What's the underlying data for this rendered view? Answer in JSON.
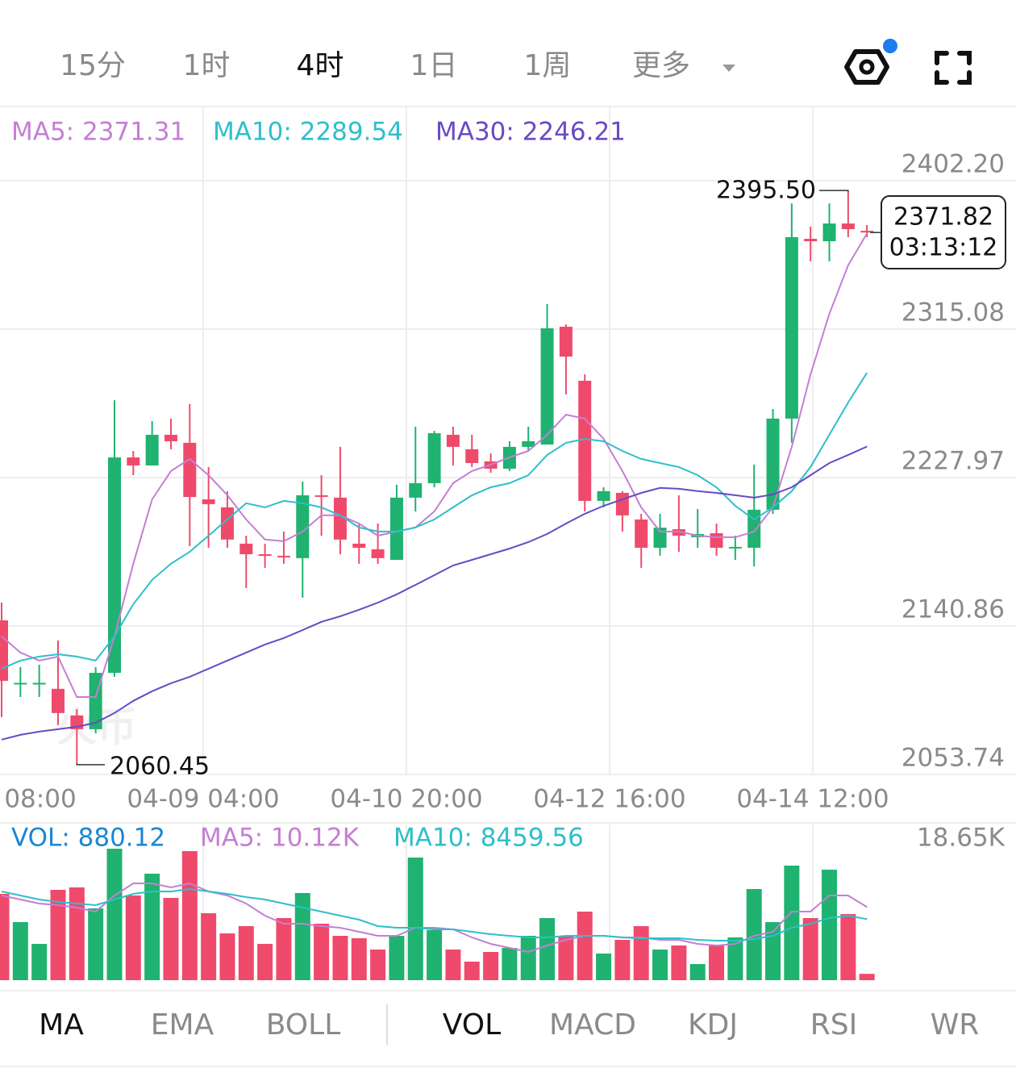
{
  "tabs": [
    {
      "label": "15分",
      "active": false
    },
    {
      "label": "1时",
      "active": false
    },
    {
      "label": "4时",
      "active": true
    },
    {
      "label": "1日",
      "active": false
    },
    {
      "label": "1周",
      "active": false
    },
    {
      "label": "更多",
      "active": false
    }
  ],
  "indicator_tabs": [
    {
      "label": "MA",
      "active": true
    },
    {
      "label": "EMA",
      "active": false
    },
    {
      "label": "BOLL",
      "active": false
    },
    {
      "label": "VOL",
      "active": true
    },
    {
      "label": "MACD",
      "active": false
    },
    {
      "label": "KDJ",
      "active": false
    },
    {
      "label": "RSI",
      "active": false
    },
    {
      "label": "WR",
      "active": false
    }
  ],
  "chart_data": [
    {
      "type": "candlestick",
      "watermark": "火币",
      "up_color": "#1fb270",
      "down_color": "#ef4a6b",
      "legend": [
        {
          "text": "MA5: 2371.31",
          "color": "#c47fd3"
        },
        {
          "text": "MA10: 2289.54",
          "color": "#2ebfca"
        },
        {
          "text": "MA30: 2246.21",
          "color": "#6b49c4"
        }
      ],
      "x_labels": [
        "08:00",
        "04-09 04:00",
        "04-10 20:00",
        "04-12 16:00",
        "04-14 12:00"
      ],
      "open": [
        2144.2,
        2107.3,
        2107.3,
        2104.0,
        2088.4,
        2080.3,
        2113.4,
        2239.8,
        2235.1,
        2253.1,
        2248.4,
        2215.2,
        2210.5,
        2189.2,
        2183.0,
        2182.1,
        2180.7,
        2217.6,
        2216.2,
        2189.2,
        2185.9,
        2179.7,
        2216.2,
        2224.7,
        2253.1,
        2244.6,
        2237.5,
        2233.2,
        2246.0,
        2247.4,
        2316.5,
        2284.8,
        2214.3,
        2219.0,
        2203.4,
        2186.8,
        2197.7,
        2193.0,
        2195.3,
        2186.8,
        2186.8,
        2209.1,
        2262.6,
        2368.1,
        2366.7,
        2377.1,
        2372.8
      ],
      "high": [
        2154.6,
        2116.8,
        2118.2,
        2132.4,
        2092.1,
        2116.8,
        2273.4,
        2243.6,
        2261.1,
        2262.6,
        2271.1,
        2234.2,
        2220.0,
        2193.9,
        2189.2,
        2196.3,
        2225.6,
        2229.4,
        2246.0,
        2201.0,
        2201.0,
        2223.7,
        2257.8,
        2255.4,
        2257.8,
        2253.1,
        2242.2,
        2249.3,
        2257.8,
        2329.8,
        2317.9,
        2288.6,
        2222.3,
        2220.0,
        2206.7,
        2206.7,
        2217.6,
        2209.5,
        2201.0,
        2193.9,
        2235.6,
        2268.2,
        2388.9,
        2375.2,
        2388.9,
        2395.5,
        2376.2
      ],
      "low": [
        2087.4,
        2099.2,
        2099.2,
        2082.7,
        2060.45,
        2077.9,
        2111.1,
        2229.4,
        2235.1,
        2244.6,
        2187.8,
        2186.8,
        2186.8,
        2163.2,
        2175.0,
        2177.4,
        2157.5,
        2193.9,
        2183.0,
        2177.4,
        2177.4,
        2179.7,
        2208.1,
        2222.3,
        2235.1,
        2234.2,
        2230.8,
        2231.8,
        2243.6,
        2247.4,
        2276.8,
        2208.1,
        2210.5,
        2196.3,
        2175.0,
        2182.1,
        2184.4,
        2186.8,
        2182.1,
        2179.7,
        2175.9,
        2206.7,
        2248.4,
        2354.9,
        2354.9,
        2369.1,
        2369.1
      ],
      "close": [
        2108.7,
        2107.5,
        2107.5,
        2089.8,
        2080.3,
        2113.4,
        2239.8,
        2235.1,
        2253.1,
        2249.3,
        2216.6,
        2212.4,
        2191.6,
        2183.0,
        2182.6,
        2181.6,
        2217.6,
        2217.1,
        2191.6,
        2186.8,
        2180.7,
        2216.2,
        2224.7,
        2254.0,
        2246.0,
        2236.5,
        2233.2,
        2246.0,
        2249.3,
        2315.6,
        2299.0,
        2214.3,
        2220.0,
        2205.8,
        2186.8,
        2198.6,
        2193.9,
        2194.9,
        2186.8,
        2187.3,
        2209.1,
        2262.6,
        2369.1,
        2366.7,
        2377.1,
        2373.8,
        2371.82
      ],
      "series": [
        {
          "name": "MA5",
          "color": "#c47fd3",
          "values": [
            2134.8,
            2125.3,
            2120.6,
            2122.9,
            2099.2,
            2099.2,
            2134.8,
            2177.4,
            2215.2,
            2231.8,
            2238.9,
            2229.4,
            2217.6,
            2203.4,
            2191.6,
            2190.6,
            2196.3,
            2205.8,
            2205.8,
            2201.0,
            2193.9,
            2196.3,
            2198.7,
            2208.1,
            2224.7,
            2231.8,
            2235.6,
            2239.8,
            2243.6,
            2253.1,
            2264.9,
            2262.6,
            2250.7,
            2231.8,
            2210.5,
            2196.3,
            2196.3,
            2193.9,
            2193.0,
            2193.0,
            2196.3,
            2210.5,
            2246.0,
            2288.6,
            2324.1,
            2352.5,
            2371.31
          ]
        },
        {
          "name": "MA10",
          "color": "#2ebfca",
          "values": [
            2115.8,
            2120.6,
            2122.9,
            2124.3,
            2122.9,
            2120.6,
            2134.8,
            2153.7,
            2167.9,
            2177.4,
            2184.4,
            2193.9,
            2203.4,
            2212.9,
            2210.5,
            2214.3,
            2212.9,
            2210.5,
            2205.8,
            2198.7,
            2196.3,
            2196.3,
            2198.7,
            2203.4,
            2210.5,
            2217.6,
            2222.3,
            2224.7,
            2229.4,
            2241.3,
            2248.4,
            2250.7,
            2249.3,
            2243.6,
            2238.9,
            2236.5,
            2234.2,
            2229.4,
            2222.3,
            2211.4,
            2203.4,
            2210.5,
            2220.0,
            2234.2,
            2253.1,
            2272.0,
            2289.54
          ]
        },
        {
          "name": "MA30",
          "color": "#6b49c4",
          "values": [
            2074.2,
            2077.0,
            2078.9,
            2080.3,
            2081.7,
            2084.1,
            2089.8,
            2096.9,
            2102.6,
            2107.3,
            2111.1,
            2115.8,
            2120.6,
            2125.3,
            2130.0,
            2133.8,
            2138.5,
            2143.3,
            2146.6,
            2150.4,
            2154.6,
            2159.4,
            2165.0,
            2170.7,
            2176.4,
            2179.7,
            2183.0,
            2186.3,
            2190.1,
            2194.9,
            2201.0,
            2206.7,
            2211.4,
            2215.2,
            2219.0,
            2221.9,
            2221.4,
            2220.0,
            2219.0,
            2217.6,
            2216.2,
            2218.1,
            2222.3,
            2229.4,
            2236.5,
            2241.3,
            2246.21
          ]
        }
      ],
      "high_label": {
        "value": 2395.5,
        "label": "2395.50"
      },
      "low_label": 2060.45,
      "last_price": 2371.82,
      "countdown": "03:13:12",
      "ylim": [
        2053.74,
        2445.3
      ],
      "yticks": [
        2053.74,
        2140.86,
        2227.97,
        2315.08,
        {
          "value": 2402.2,
          "label": "2402.20"
        }
      ],
      "grid": true
    },
    {
      "type": "volume",
      "legend": [
        {
          "text": "VOL: 880.12",
          "color": "#1a87d6"
        },
        {
          "text": "MA5: 10.12K",
          "color": "#c47fd3"
        },
        {
          "text": "MA10: 8459.56",
          "color": "#2ebfca"
        }
      ],
      "values": [
        11950,
        8041,
        5026,
        12508,
        12843,
        9940,
        18204,
        11726,
        14742,
        11391,
        17869,
        9269,
        6477,
        7483,
        5026,
        8599,
        12061,
        7818,
        6142,
        5807,
        4244,
        6142,
        16975,
        6924,
        4244,
        2569,
        3909,
        4467,
        6142,
        8599,
        6142,
        9493,
        3685,
        5584,
        7483,
        4244,
        4802,
        2234,
        4802,
        5919,
        12620,
        8041,
        15859,
        8599,
        15300,
        9158,
        880.12
      ],
      "series": [
        {
          "name": "MA5",
          "color": "#c47fd3",
          "values": [
            11726,
            11168,
            10610,
            10386,
            10051,
            9493,
            11726,
            13402,
            13402,
            12843,
            13402,
            12285,
            11726,
            10610,
            8934,
            7818,
            7818,
            7483,
            7259,
            6701,
            6142,
            6142,
            7259,
            7259,
            7036,
            5919,
            5026,
            4467,
            3909,
            4802,
            5584,
            6142,
            6142,
            5919,
            5919,
            5584,
            5584,
            5026,
            4802,
            5026,
            6142,
            6701,
            9493,
            9493,
            11726,
            11726,
            10120
          ]
        },
        {
          "name": "MA10",
          "color": "#2ebfca",
          "values": [
            12285,
            11726,
            11168,
            10833,
            10610,
            10386,
            11168,
            11950,
            12285,
            12285,
            12620,
            12285,
            11950,
            11503,
            11168,
            10610,
            10051,
            9493,
            8934,
            8376,
            7483,
            7259,
            7259,
            7036,
            7036,
            6701,
            6366,
            6142,
            5919,
            5919,
            6142,
            6142,
            6142,
            5919,
            5807,
            5807,
            5807,
            5584,
            5472,
            5472,
            5696,
            6142,
            7259,
            7818,
            8599,
            8934,
            8459.56
          ]
        }
      ],
      "ylim": [
        0,
        21554
      ],
      "yticks": [
        {
          "value": 18650,
          "label": "18.65K"
        }
      ]
    }
  ]
}
